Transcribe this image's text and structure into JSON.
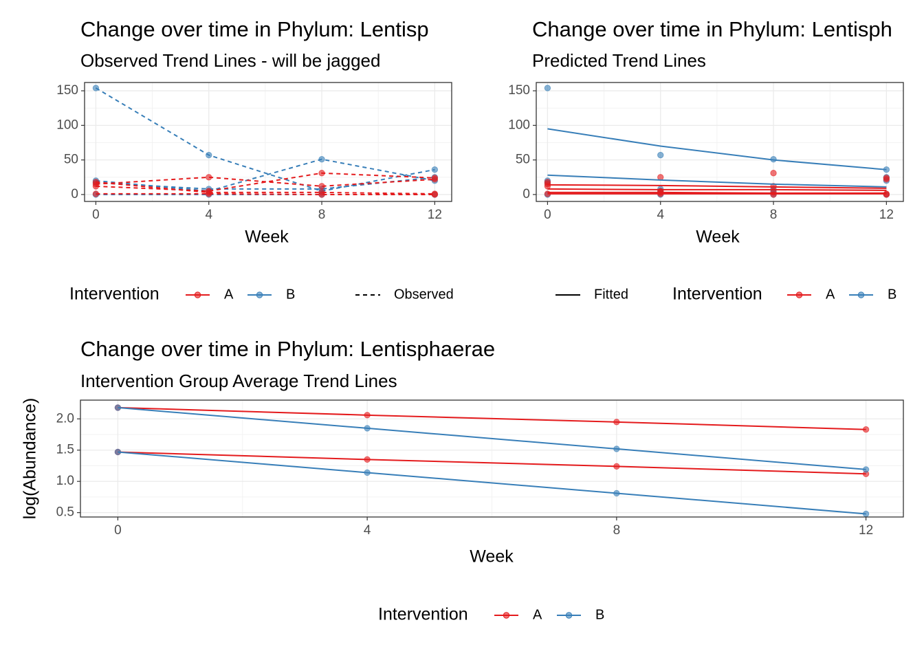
{
  "chart_data": [
    {
      "type": "line",
      "title": "Change over time in Phylum: Lentisp",
      "subtitle": "Observed Trend Lines - will be jagged",
      "xlabel": "Week",
      "x": [
        0,
        4,
        8,
        12
      ],
      "xlim": [
        -0.4,
        12.6
      ],
      "ylim": [
        -10,
        162
      ],
      "xticks": [
        0,
        4,
        8,
        12
      ],
      "yticks": [
        0,
        50,
        100,
        150
      ],
      "grid": true,
      "series": [
        {
          "color": "#377EB8",
          "linestyle": "dashed",
          "points": true,
          "values": [
            154,
            57,
            5,
            36
          ]
        },
        {
          "color": "#377EB8",
          "linestyle": "dashed",
          "points": true,
          "values": [
            20,
            5,
            51,
            20
          ]
        },
        {
          "color": "#377EB8",
          "linestyle": "dashed",
          "points": true,
          "values": [
            17,
            8,
            8,
            25
          ]
        },
        {
          "color": "#377EB8",
          "linestyle": "dashed",
          "points": true,
          "values": [
            0,
            0,
            0,
            0
          ]
        },
        {
          "color": "#E41A1C",
          "linestyle": "dashed",
          "points": true,
          "values": [
            15,
            25,
            12,
            22
          ]
        },
        {
          "color": "#E41A1C",
          "linestyle": "dashed",
          "points": true,
          "values": [
            12,
            5,
            31,
            24
          ]
        },
        {
          "color": "#E41A1C",
          "linestyle": "dashed",
          "points": true,
          "values": [
            1,
            1,
            0,
            0
          ]
        },
        {
          "color": "#E41A1C",
          "linestyle": "dashed",
          "points": true,
          "values": [
            18,
            3,
            3,
            1
          ]
        }
      ],
      "legend": {
        "title": "Intervention",
        "items": [
          {
            "name": "A",
            "color": "#E41A1C"
          },
          {
            "name": "B",
            "color": "#377EB8"
          }
        ],
        "linetype": {
          "label": "Observed",
          "style": "dashed"
        }
      }
    },
    {
      "type": "line",
      "title": "Change over time in Phylum: Lentisph",
      "subtitle": "Predicted Trend Lines",
      "xlabel": "Week",
      "x": [
        0,
        4,
        8,
        12
      ],
      "xlim": [
        -0.4,
        12.6
      ],
      "ylim": [
        -10,
        162
      ],
      "xticks": [
        0,
        4,
        8,
        12
      ],
      "yticks": [
        0,
        50,
        100,
        150
      ],
      "grid": true,
      "series": [
        {
          "color": "#377EB8",
          "linestyle": "none",
          "points": true,
          "values": [
            154,
            57,
            5,
            36
          ]
        },
        {
          "color": "#377EB8",
          "linestyle": "none",
          "points": true,
          "values": [
            20,
            5,
            51,
            20
          ]
        },
        {
          "color": "#377EB8",
          "linestyle": "none",
          "points": true,
          "values": [
            17,
            8,
            8,
            25
          ]
        },
        {
          "color": "#377EB8",
          "linestyle": "none",
          "points": true,
          "values": [
            0,
            0,
            0,
            0
          ]
        },
        {
          "color": "#E41A1C",
          "linestyle": "none",
          "points": true,
          "values": [
            15,
            25,
            12,
            22
          ]
        },
        {
          "color": "#E41A1C",
          "linestyle": "none",
          "points": true,
          "values": [
            12,
            5,
            31,
            24
          ]
        },
        {
          "color": "#E41A1C",
          "linestyle": "none",
          "points": true,
          "values": [
            1,
            1,
            0,
            0
          ]
        },
        {
          "color": "#E41A1C",
          "linestyle": "none",
          "points": true,
          "values": [
            18,
            3,
            3,
            1
          ]
        },
        {
          "color": "#377EB8",
          "linestyle": "solid",
          "points": false,
          "values": [
            95,
            70,
            50,
            36
          ]
        },
        {
          "color": "#377EB8",
          "linestyle": "solid",
          "points": false,
          "values": [
            28,
            21,
            15,
            11
          ]
        },
        {
          "color": "#E41A1C",
          "linestyle": "solid",
          "points": false,
          "values": [
            14,
            13,
            11,
            9
          ]
        },
        {
          "color": "#E41A1C",
          "linestyle": "solid",
          "points": false,
          "values": [
            8,
            7,
            7,
            6
          ]
        },
        {
          "color": "#E41A1C",
          "linestyle": "solid",
          "points": false,
          "values": [
            3,
            3,
            2,
            2
          ]
        },
        {
          "color": "#E41A1C",
          "linestyle": "solid",
          "points": false,
          "values": [
            1,
            1,
            1,
            1
          ]
        }
      ],
      "legend": {
        "title": "Intervention",
        "items": [
          {
            "name": "A",
            "color": "#E41A1C"
          },
          {
            "name": "B",
            "color": "#377EB8"
          }
        ],
        "linetype": {
          "label": "Fitted",
          "style": "solid"
        }
      }
    },
    {
      "type": "line",
      "title": "Change over time in Phylum: Lentisphaerae",
      "subtitle": "Intervention Group Average Trend Lines",
      "xlabel": "Week",
      "ylabel": "log(Abundance)",
      "x": [
        0,
        4,
        8,
        12
      ],
      "xlim": [
        -0.6,
        12.6
      ],
      "ylim": [
        0.43,
        2.3
      ],
      "xticks": [
        0,
        4,
        8,
        12
      ],
      "yticks": [
        0.5,
        {
          "value": 1,
          "label": "1.0"
        },
        1.5,
        {
          "value": 2,
          "label": "2.0"
        }
      ],
      "grid": true,
      "series": [
        {
          "color": "#E41A1C",
          "linestyle": "solid",
          "points": true,
          "values": [
            2.18,
            2.06,
            1.95,
            1.83
          ]
        },
        {
          "color": "#E41A1C",
          "linestyle": "solid",
          "points": true,
          "values": [
            1.47,
            1.35,
            1.24,
            1.12
          ]
        },
        {
          "color": "#377EB8",
          "linestyle": "solid",
          "points": true,
          "values": [
            2.18,
            1.85,
            1.52,
            1.19
          ]
        },
        {
          "color": "#377EB8",
          "linestyle": "solid",
          "points": true,
          "values": [
            1.47,
            1.14,
            0.81,
            0.48
          ]
        }
      ],
      "legend": {
        "title": "Intervention",
        "items": [
          {
            "name": "A",
            "color": "#E41A1C"
          },
          {
            "name": "B",
            "color": "#377EB8"
          }
        ]
      }
    }
  ]
}
